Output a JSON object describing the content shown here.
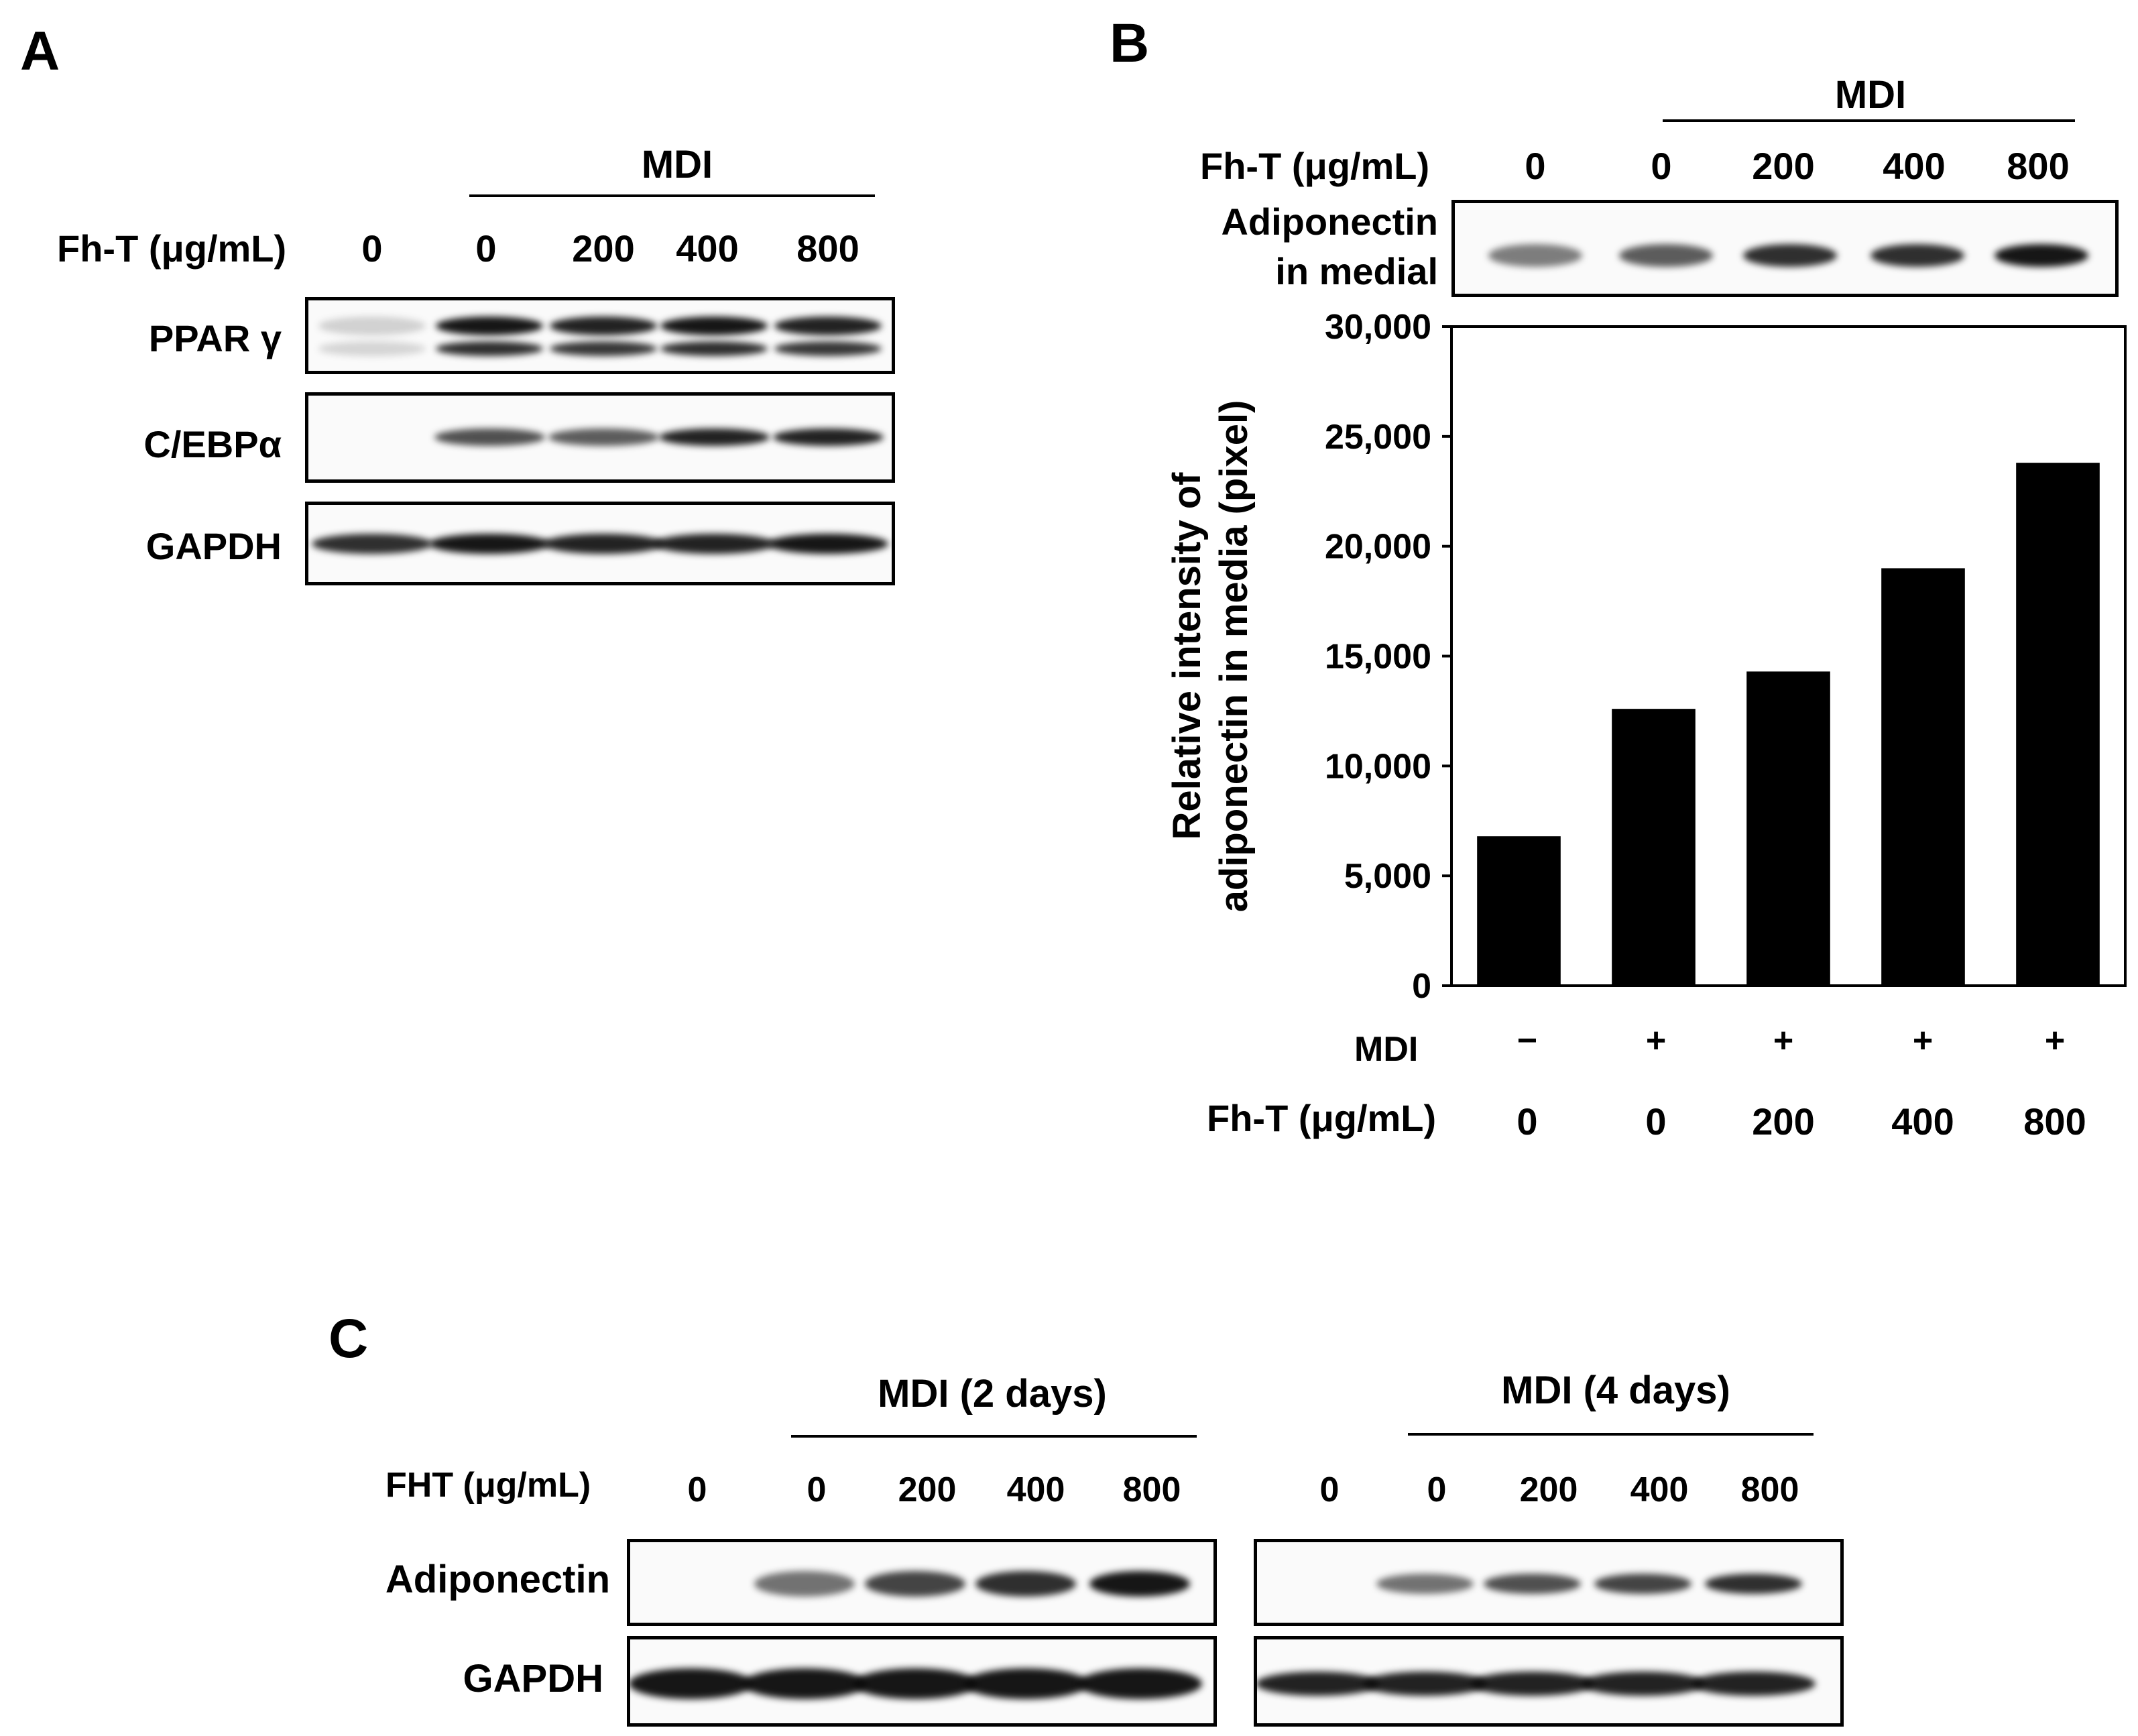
{
  "panelA": {
    "letter": "A",
    "mdi_label": "MDI",
    "treatment_label": "Fh-T (μg/mL)",
    "doses": [
      "0",
      "0",
      "200",
      "400",
      "800"
    ],
    "blots": [
      {
        "label": "PPAR γ",
        "intensities": [
          0.18,
          1.0,
          0.95,
          1.0,
          0.95
        ]
      },
      {
        "label": "C/EBPα",
        "intensities": [
          0.0,
          0.75,
          0.7,
          0.95,
          0.95
        ]
      },
      {
        "label": "GAPDH",
        "intensities": [
          0.9,
          1.0,
          0.95,
          0.95,
          1.0
        ]
      }
    ]
  },
  "panelB": {
    "letter": "B",
    "mdi_label": "MDI",
    "treatment_label": "Fh-T (μg/mL)",
    "doses": [
      "0",
      "0",
      "200",
      "400",
      "800"
    ],
    "blot_label_line1": "Adiponectin",
    "blot_label_line2": "in medial",
    "blot_intensities": [
      0.55,
      0.7,
      0.9,
      0.9,
      1.0
    ],
    "mdi_row_label": "MDI",
    "mdi_signs": [
      "−",
      "+",
      "+",
      "+",
      "+"
    ],
    "chart_data": {
      "type": "bar",
      "categories": [
        "0",
        "0",
        "200",
        "400",
        "800"
      ],
      "values": [
        6800,
        12600,
        14300,
        19000,
        23800
      ],
      "ylabel_line1": "Relative intensity of",
      "ylabel_line2": "adiponectin in media (pixel)",
      "ylim": [
        0,
        30000
      ],
      "yticks": [
        "0",
        "5,000",
        "10,000",
        "15,000",
        "20,000",
        "25,000",
        "30,000"
      ],
      "grid": false
    }
  },
  "panelC": {
    "letter": "C",
    "treatment_label": "FHT (μg/mL)",
    "group1_label": "MDI (2 days)",
    "group2_label": "MDI (4 days)",
    "doses1": [
      "0",
      "0",
      "200",
      "400",
      "800"
    ],
    "doses2": [
      "0",
      "0",
      "200",
      "400",
      "800"
    ],
    "row1_label": "Adiponectin",
    "row2_label": "GAPDH",
    "adipo1": [
      0.0,
      0.6,
      0.8,
      0.9,
      1.0
    ],
    "adipo2": [
      0.0,
      0.6,
      0.75,
      0.8,
      0.9
    ],
    "gapdh1": [
      1.0,
      1.0,
      1.0,
      1.0,
      1.0
    ],
    "gapdh2": [
      0.95,
      0.95,
      0.95,
      0.95,
      0.95
    ]
  }
}
